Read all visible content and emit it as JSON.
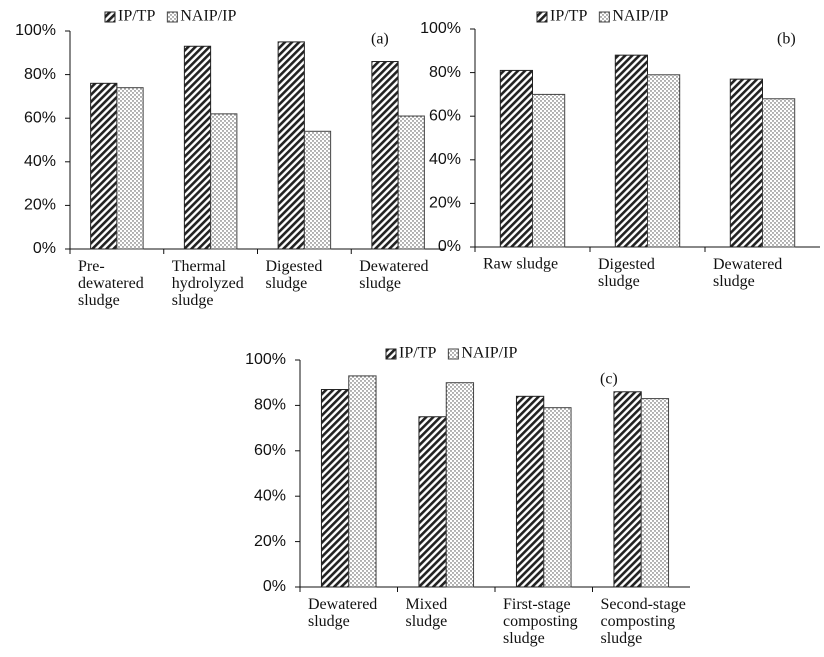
{
  "chart_data": [
    {
      "type": "bar",
      "annotation": "(a)",
      "categories": [
        "Pre-\ndewatered\nsludge",
        "Thermal\nhydrolyzed\nsludge",
        "Digested\nsludge",
        "Dewatered\nsludge"
      ],
      "series": [
        {
          "name": "IP/TP",
          "pattern": "hatch",
          "color": "#222",
          "values": [
            76,
            93,
            95,
            86
          ]
        },
        {
          "name": "NAIP/IP",
          "pattern": "dots",
          "color": "#444",
          "values": [
            74,
            62,
            54,
            61
          ]
        }
      ],
      "ylim": [
        0,
        100
      ],
      "yticks": [
        {
          "value": 0,
          "label": "0%"
        },
        {
          "value": 20,
          "label": "20%"
        },
        {
          "value": 40,
          "label": "40%"
        },
        {
          "value": 60,
          "label": "60%"
        },
        {
          "value": 80,
          "label": "80%"
        },
        {
          "value": 100,
          "label": "100%"
        }
      ]
    },
    {
      "type": "bar",
      "annotation": "(b)",
      "categories": [
        "Raw sludge",
        "Digested\nsludge",
        "Dewatered\nsludge"
      ],
      "series": [
        {
          "name": "IP/TP",
          "pattern": "hatch",
          "color": "#222",
          "values": [
            81,
            88,
            77
          ]
        },
        {
          "name": "NAIP/IP",
          "pattern": "dots",
          "color": "#444",
          "values": [
            70,
            79,
            68
          ]
        }
      ],
      "ylim": [
        0,
        100
      ],
      "yticks": [
        {
          "value": 0,
          "label": "0%"
        },
        {
          "value": 20,
          "label": "20%"
        },
        {
          "value": 40,
          "label": "40%"
        },
        {
          "value": 60,
          "label": "60%"
        },
        {
          "value": 80,
          "label": "80%"
        },
        {
          "value": 100,
          "label": "100%"
        }
      ]
    },
    {
      "type": "bar",
      "annotation": "(c)",
      "categories": [
        "Dewatered\nsludge",
        "Mixed\nsludge",
        "First-stage\ncomposting\nsludge",
        "Second-stage\ncomposting\nsludge"
      ],
      "series": [
        {
          "name": "IP/TP",
          "pattern": "hatch",
          "color": "#222",
          "values": [
            87,
            75,
            84,
            86
          ]
        },
        {
          "name": "NAIP/IP",
          "pattern": "dots",
          "color": "#444",
          "values": [
            93,
            90,
            79,
            83
          ]
        }
      ],
      "ylim": [
        0,
        100
      ],
      "yticks": [
        {
          "value": 0,
          "label": "0%"
        },
        {
          "value": 20,
          "label": "20%"
        },
        {
          "value": 40,
          "label": "40%"
        },
        {
          "value": 60,
          "label": "60%"
        },
        {
          "value": 80,
          "label": "80%"
        },
        {
          "value": 100,
          "label": "100%"
        }
      ]
    }
  ]
}
